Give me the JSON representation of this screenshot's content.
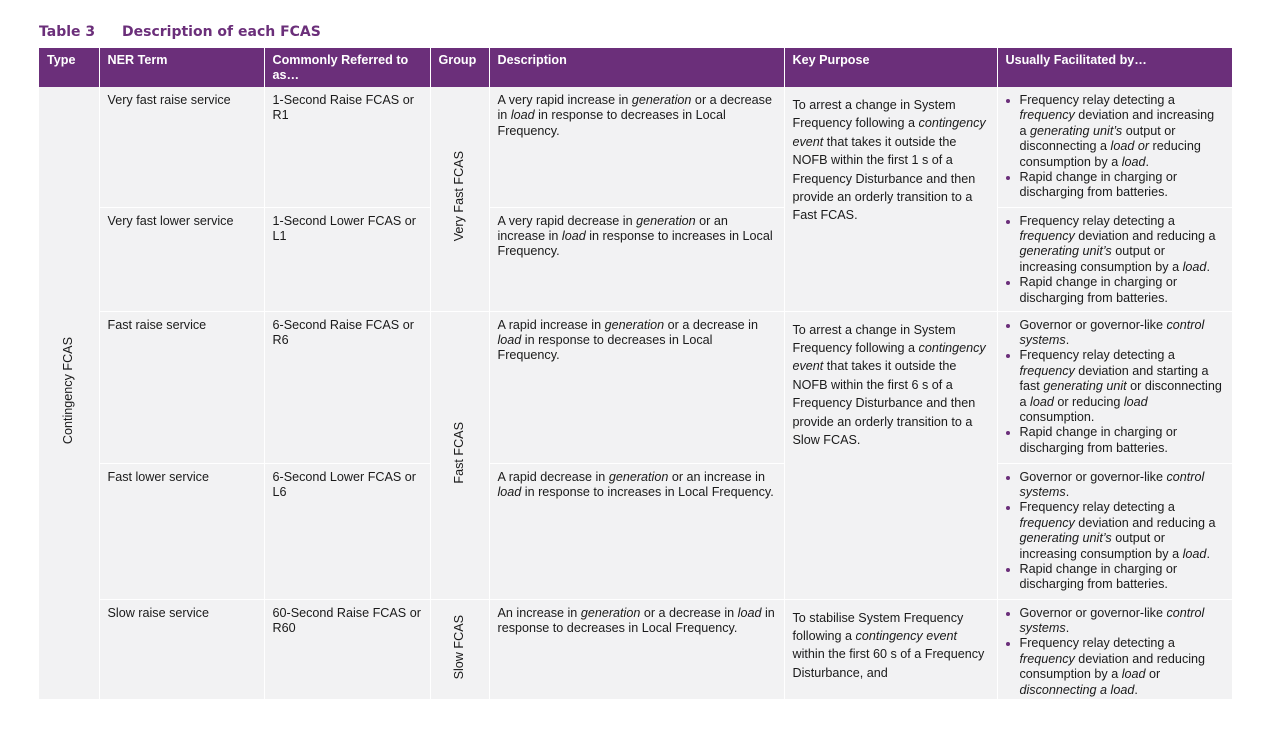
{
  "caption": {
    "number": "Table 3",
    "title": "Description of each FCAS"
  },
  "headers": [
    "Type",
    "NER Term",
    "Commonly Referred to as…",
    "Group",
    "Description",
    "Key Purpose",
    "Usually Facilitated by…"
  ],
  "type_label": "Contingency FCAS",
  "groups": {
    "very_fast": "Very Fast FCAS",
    "fast": "Fast FCAS",
    "slow": "Slow FCAS"
  },
  "rows": [
    {
      "ner_term": "Very fast raise service",
      "referred": "1-Second Raise FCAS or R1",
      "description": [
        {
          "t": "A very rapid increase in "
        },
        {
          "t": "generation",
          "i": true
        },
        {
          "t": " or a decrease in "
        },
        {
          "t": "load",
          "i": true
        },
        {
          "t": " in response to decreases in Local Frequency."
        }
      ],
      "facilitated": [
        [
          {
            "t": "Frequency relay detecting a "
          },
          {
            "t": "frequency",
            "i": true
          },
          {
            "t": " deviation and increasing a "
          },
          {
            "t": "generating unit’s",
            "i": true
          },
          {
            "t": " output or disconnecting a "
          },
          {
            "t": "load or",
            "i": true
          },
          {
            "t": " reducing consumption by a "
          },
          {
            "t": "load",
            "i": true
          },
          {
            "t": "."
          }
        ],
        [
          {
            "t": "Rapid change in charging or discharging from batteries."
          }
        ]
      ]
    },
    {
      "ner_term": "Very fast lower service",
      "referred": "1-Second Lower FCAS or L1",
      "description": [
        {
          "t": "A very rapid decrease in "
        },
        {
          "t": "generation",
          "i": true
        },
        {
          "t": " or an increase in "
        },
        {
          "t": "load",
          "i": true
        },
        {
          "t": " in response to increases in Local Frequency."
        }
      ],
      "facilitated": [
        [
          {
            "t": "Frequency relay detecting a "
          },
          {
            "t": "frequency",
            "i": true
          },
          {
            "t": " deviation and reducing a "
          },
          {
            "t": "generating unit’s",
            "i": true
          },
          {
            "t": " output or increasing consumption by a "
          },
          {
            "t": "load",
            "i": true
          },
          {
            "t": "."
          }
        ],
        [
          {
            "t": "Rapid change in charging or discharging from batteries."
          }
        ]
      ]
    },
    {
      "ner_term": "Fast raise service",
      "referred": "6-Second Raise FCAS or R6",
      "description": [
        {
          "t": "A rapid increase in "
        },
        {
          "t": "generation",
          "i": true
        },
        {
          "t": " or a decrease in "
        },
        {
          "t": "load",
          "i": true
        },
        {
          "t": " in response to decreases in Local Frequency."
        }
      ],
      "facilitated": [
        [
          {
            "t": "Governor or governor-like "
          },
          {
            "t": "control systems",
            "i": true
          },
          {
            "t": "."
          }
        ],
        [
          {
            "t": "Frequency relay detecting a "
          },
          {
            "t": "frequency",
            "i": true
          },
          {
            "t": " deviation and starting a fast "
          },
          {
            "t": "generating unit",
            "i": true
          },
          {
            "t": " or disconnecting a "
          },
          {
            "t": "load",
            "i": true
          },
          {
            "t": " or reducing "
          },
          {
            "t": "load",
            "i": true
          },
          {
            "t": " consumption."
          }
        ],
        [
          {
            "t": "Rapid change in charging or discharging from batteries."
          }
        ]
      ]
    },
    {
      "ner_term": "Fast lower service",
      "referred": "6-Second Lower FCAS or L6",
      "description": [
        {
          "t": "A rapid decrease in "
        },
        {
          "t": "generation",
          "i": true
        },
        {
          "t": " or an increase in "
        },
        {
          "t": "load",
          "i": true
        },
        {
          "t": " in response to increases in Local Frequency."
        }
      ],
      "facilitated": [
        [
          {
            "t": "Governor or governor-like "
          },
          {
            "t": "control systems",
            "i": true
          },
          {
            "t": "."
          }
        ],
        [
          {
            "t": "Frequency relay detecting a "
          },
          {
            "t": "frequency",
            "i": true
          },
          {
            "t": " deviation and reducing a "
          },
          {
            "t": "generating unit’s",
            "i": true
          },
          {
            "t": " output or increasing consumption by a "
          },
          {
            "t": "load",
            "i": true
          },
          {
            "t": "."
          }
        ],
        [
          {
            "t": "Rapid change in charging or discharging from batteries."
          }
        ]
      ]
    },
    {
      "ner_term": "Slow raise service",
      "referred": "60-Second Raise FCAS or R60",
      "description": [
        {
          "t": "An increase in "
        },
        {
          "t": "generation",
          "i": true
        },
        {
          "t": " or a decrease in "
        },
        {
          "t": "load",
          "i": true
        },
        {
          "t": " in response to decreases in Local Frequency."
        }
      ],
      "facilitated": [
        [
          {
            "t": "Governor or governor-like "
          },
          {
            "t": "control systems",
            "i": true
          },
          {
            "t": "."
          }
        ],
        [
          {
            "t": "Frequency relay detecting a "
          },
          {
            "t": "frequency",
            "i": true
          },
          {
            "t": " deviation and reducing consumption by a "
          },
          {
            "t": "load",
            "i": true
          },
          {
            "t": " or "
          },
          {
            "t": "disconnecting a load",
            "i": true
          },
          {
            "t": "."
          }
        ]
      ]
    }
  ],
  "purposes": {
    "very_fast": [
      {
        "t": "To arrest a change in System Frequency following a "
      },
      {
        "t": "contingency event",
        "i": true
      },
      {
        "t": " that takes it outside the NOFB within the first 1 s of a Frequency Disturbance and then provide an orderly transition to a Fast FCAS."
      }
    ],
    "fast": [
      {
        "t": "To arrest a change in System Frequency following a "
      },
      {
        "t": "contingency event",
        "i": true
      },
      {
        "t": " that takes it outside the NOFB within the first 6 s of a Frequency Disturbance and then provide an orderly transition to a Slow FCAS."
      }
    ],
    "slow": [
      {
        "t": "To stabilise System Frequency following a "
      },
      {
        "t": "contingency event",
        "i": true
      },
      {
        "t": " within the first 60 s of a Frequency Disturbance, and"
      }
    ]
  }
}
